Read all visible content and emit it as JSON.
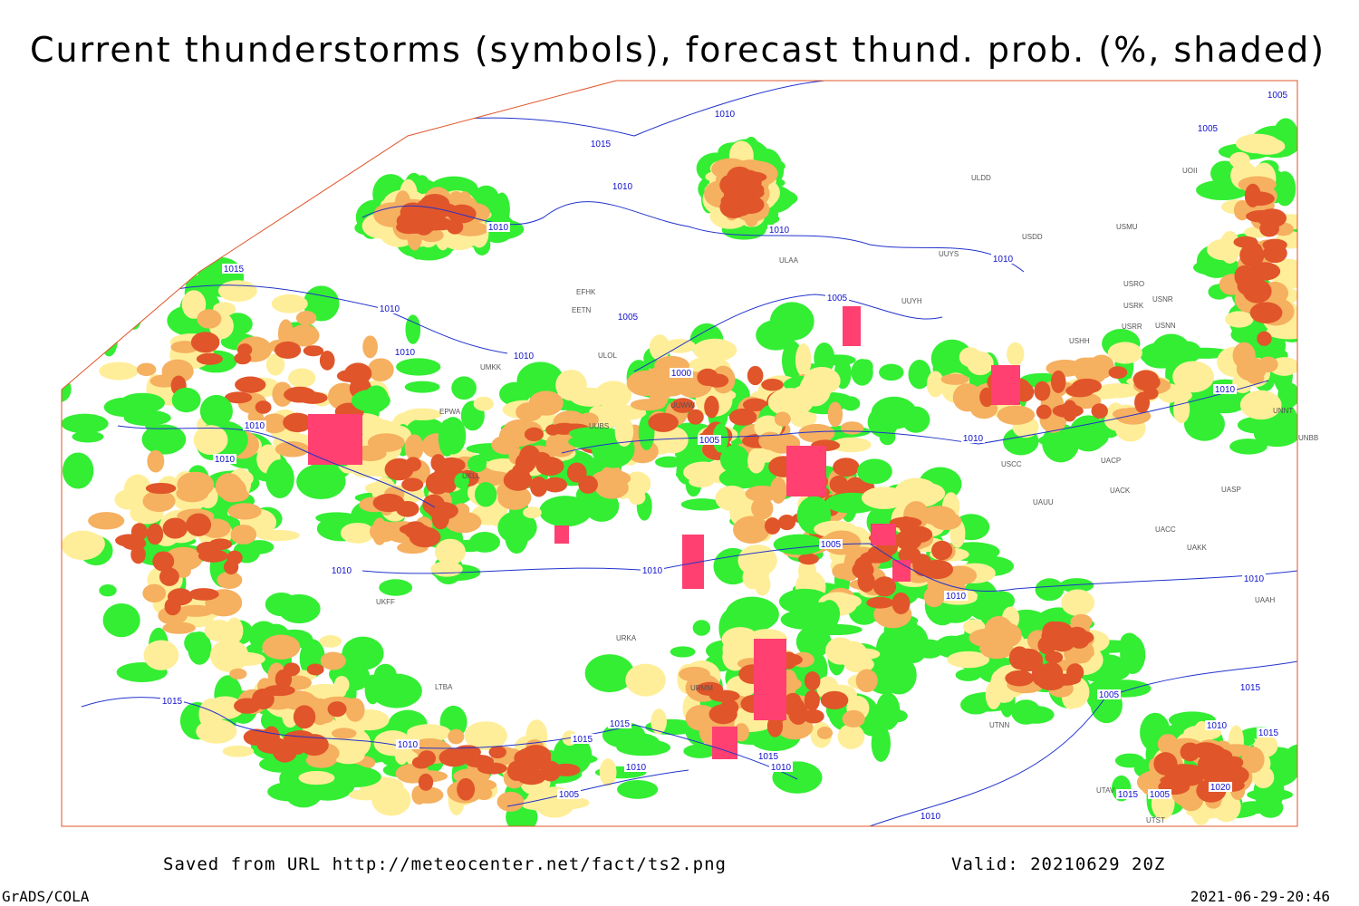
{
  "title": "Current thunderstorms (symbols), forecast thund. prob. (%, shaded)",
  "isobar_labels": [
    1010,
    1015,
    1010,
    1010,
    1010,
    1015,
    1010,
    1010,
    1005,
    1010,
    1005,
    1000,
    1010,
    1005,
    1005,
    1010,
    1010,
    1010,
    1005,
    1010,
    1005,
    1010,
    1010,
    1010,
    1010,
    1015,
    1015,
    1015,
    1010,
    1015,
    1010,
    1010,
    1005,
    1005,
    1015,
    1010,
    1015,
    1020,
    1015,
    1005,
    1010
  ],
  "station_labels": [
    "ULDD",
    "UUYS",
    "USDD",
    "USMU",
    "UOII",
    "ULAA",
    "EFHK",
    "EETN",
    "ULOL",
    "UUYH",
    "USRO",
    "USRK",
    "USNR",
    "USRR",
    "USNN",
    "USHH",
    "UMKK",
    "EPWA",
    "UKLL",
    "UUBS",
    "UUWW",
    "USCC",
    "UACP",
    "UACK",
    "UASP",
    "UAUU",
    "UACC",
    "UAKK",
    "UNNT",
    "UNBB",
    "UAAH",
    "UKFF",
    "URKA",
    "URMM",
    "UTAV",
    "UTST",
    "LTBA",
    "UTNN"
  ],
  "footer": {
    "saved_from": "Saved from URL http://meteocenter.net/fact/ts2.png",
    "valid": "Valid: 20210629 20Z",
    "credit": "GrADS/COLA",
    "timestamp": "2021-06-29-20:46"
  }
}
